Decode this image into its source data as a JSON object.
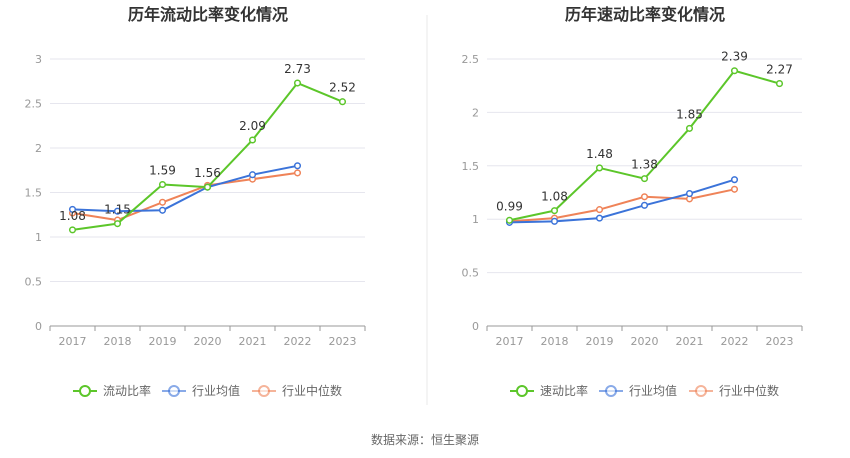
{
  "colors": {
    "company": "#5CC62A",
    "industry_avg": "#3B73D9",
    "industry_median": "#EF8358",
    "grid": "#E6E6EE",
    "axis": "#999999",
    "divider": "#E8E8E8"
  },
  "source_text": "数据来源：恒生聚源",
  "chart_data": [
    {
      "type": "line",
      "title": "历年流动比率变化情况",
      "x": [
        "2017",
        "2018",
        "2019",
        "2020",
        "2021",
        "2022",
        "2023"
      ],
      "ylim": [
        0,
        3
      ],
      "yticks": [
        0,
        0.5,
        1,
        1.5,
        2,
        2.5,
        3
      ],
      "ytick_labels": [
        "0",
        "0.5",
        "1",
        "1.5",
        "2",
        "2.5",
        "3"
      ],
      "grid": true,
      "legend_position": "bottom",
      "series": [
        {
          "name": "流动比率",
          "color_key": "company",
          "values": [
            1.08,
            1.15,
            1.59,
            1.56,
            2.09,
            2.73,
            2.52
          ],
          "labels": [
            "1.08",
            "1.15",
            "1.59",
            "1.56",
            "2.09",
            "2.73",
            "2.52"
          ]
        },
        {
          "name": "行业均值",
          "color_key": "industry_avg",
          "values": [
            1.31,
            1.29,
            1.3,
            1.56,
            1.7,
            1.8,
            null
          ]
        },
        {
          "name": "行业中位数",
          "color_key": "industry_median",
          "values": [
            1.27,
            1.19,
            1.39,
            1.58,
            1.65,
            1.72,
            null
          ]
        }
      ]
    },
    {
      "type": "line",
      "title": "历年速动比率变化情况",
      "x": [
        "2017",
        "2018",
        "2019",
        "2020",
        "2021",
        "2022",
        "2023"
      ],
      "ylim": [
        0,
        2.5
      ],
      "yticks": [
        0,
        0.5,
        1,
        1.5,
        2,
        2.5
      ],
      "ytick_labels": [
        "0",
        "0.5",
        "1",
        "1.5",
        "2",
        "2.5"
      ],
      "grid": true,
      "legend_position": "bottom",
      "series": [
        {
          "name": "速动比率",
          "color_key": "company",
          "values": [
            0.99,
            1.08,
            1.48,
            1.38,
            1.85,
            2.39,
            2.27
          ],
          "labels": [
            "0.99",
            "1.08",
            "1.48",
            "1.38",
            "1.85",
            "2.39",
            "2.27"
          ]
        },
        {
          "name": "行业均值",
          "color_key": "industry_avg",
          "values": [
            0.97,
            0.98,
            1.01,
            1.13,
            1.24,
            1.37,
            null
          ]
        },
        {
          "name": "行业中位数",
          "color_key": "industry_median",
          "values": [
            0.98,
            1.01,
            1.09,
            1.21,
            1.19,
            1.28,
            null
          ]
        }
      ]
    }
  ]
}
